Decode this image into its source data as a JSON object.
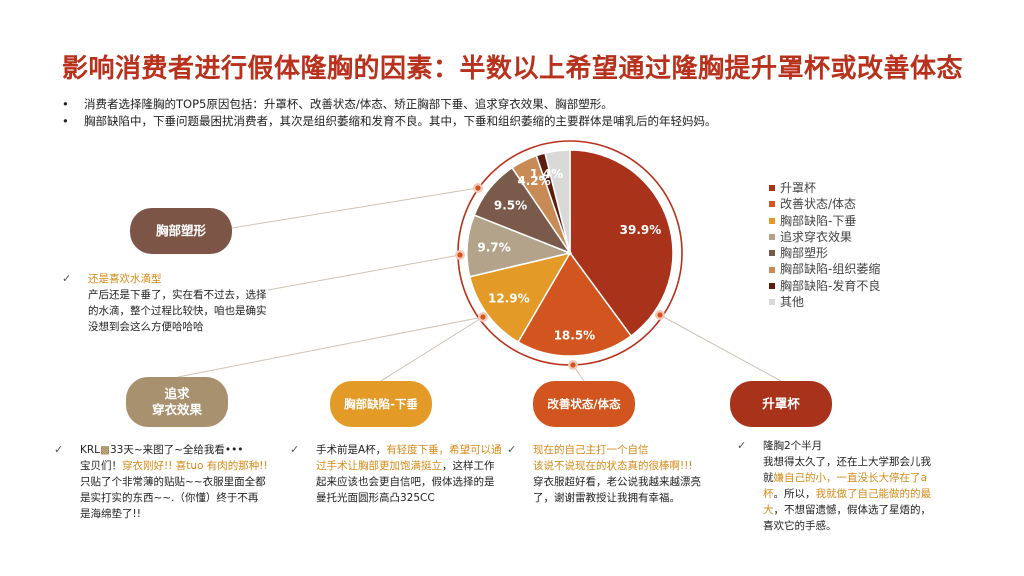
{
  "title": "影响消费者进行假体隆胸的因素：半数以上希望通过隆胸提升罩杯或改善体态",
  "bullets": [
    "消费者选择隆胸的TOP5原因包括：升罩杯、改善状态/体态、矫正胸部下垂、追求穿衣效果、胸部塑形。",
    "胸部缺陷中，下垂问题最困扰消费者，其次是组织萎缩和发育不良。其中，下垂和组织萎缩的主要群体是哺乳后的年轻妈妈。"
  ],
  "chart_data": {
    "type": "pie",
    "categories": [
      "升罩杯",
      "改善状态/体态",
      "胸部缺陷-下垂",
      "追求穿衣效果",
      "胸部塑形",
      "胸部缺陷-组织萎缩",
      "胸部缺陷-发育不良",
      "其他"
    ],
    "values": [
      39.9,
      18.5,
      12.9,
      9.7,
      9.5,
      4.2,
      1.4,
      3.9
    ],
    "labels": [
      "39.9%",
      "18.5%",
      "12.9%",
      "9.7%",
      "9.5%",
      "4.2%",
      "1.4%",
      ""
    ],
    "colors": [
      "#a8321a",
      "#d2541e",
      "#e39a27",
      "#b3a38a",
      "#7a5a4b",
      "#c98b55",
      "#5c1d0e",
      "#d9d9d9"
    ],
    "legend_position": "right"
  },
  "pills": {
    "shaping": "胸部塑形",
    "dressing": "追求\n穿衣效果",
    "sagging": "胸部缺陷-下垂",
    "posture": "改善状态/体态",
    "cup": "升罩杯"
  },
  "pill_colors": {
    "shaping": "#7c5547",
    "dressing": "#a8916f",
    "sagging": "#e39a27",
    "posture": "#d2541e",
    "cup": "#a8321a"
  },
  "quotes": {
    "shaping": {
      "hl": "还是喜欢水滴型",
      "rest": "产后还是下垂了，实在看不过去，选择的水滴，整个过程比较快，咱也是确实没想到会这么方便哈哈哈"
    },
    "dressing": {
      "part1": "KRL",
      "emoji": "▩",
      "part2": "33天~来图了~全给我看",
      "dots": "•••",
      "part3": "宝贝们！",
      "hl": "穿衣刚好!! 喜tuo 有肉的那种!!",
      "rest": "只贴了个非常薄的贴贴~~衣服里面全都是实打实的东西~~.（你懂）终于不再是海绵垫了!!"
    },
    "sagging": {
      "part1": "手术前是A杯，",
      "hl": "有轻度下垂，希望可以通过手术让胸部更加饱满挺立",
      "rest": "，这样工作起来应该也会更自信吧，假体选择的是曼托光面圆形高凸325CC"
    },
    "posture": {
      "hl": "现在的自己主打一个自信\n该说不说现在的状态真的很棒啊!!!",
      "rest": "穿衣服超好看，老公说我越来越漂亮了，谢谢雷教授让我拥有幸福。"
    },
    "cup": {
      "line1": "隆胸2个半月",
      "part1": "我想得太久了，还在上大学那会儿我就",
      "hl1": "嫌自己的小，一直没长大停在了a杯",
      "part2": "。所以，",
      "hl2": "我就做了自己能做的的最大",
      "rest": "，不想留遗憾，假体选了星焐的，喜欢它的手感。"
    }
  }
}
